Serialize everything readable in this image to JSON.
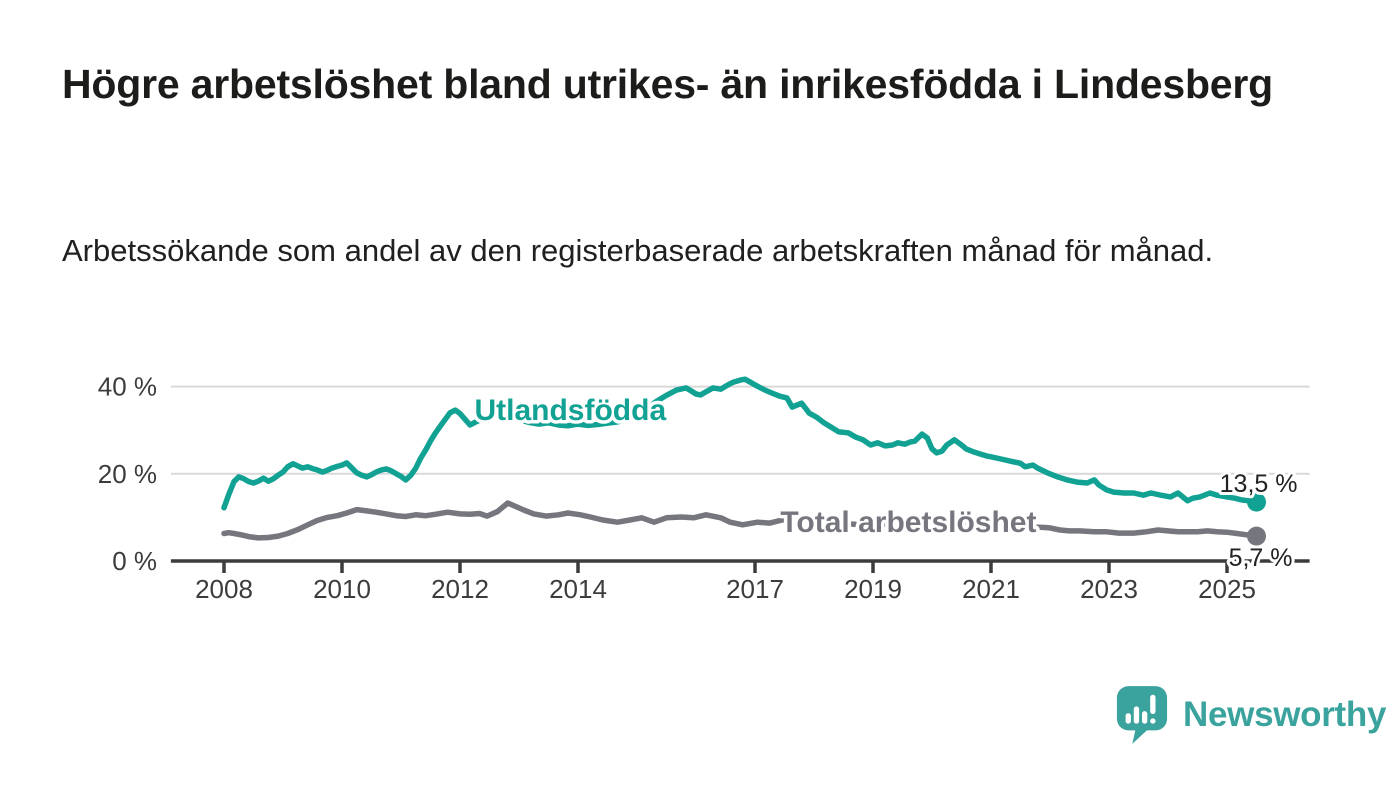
{
  "header": {
    "title": "Högre arbetslöshet bland utrikes- än inrikesfödda i Lindesberg",
    "subtitle": "Arbetssökande som andel av den registerbaserade arbetskraften månad för månad."
  },
  "footer": {
    "brand": "Newsworthy",
    "brand_color": "#3ba39d"
  },
  "chart_data": {
    "type": "line",
    "title": "Högre arbetslöshet bland utrikes- än inrikesfödda i Lindesberg",
    "xlabel": "",
    "ylabel": "",
    "unit": "%",
    "grid": "horizontal",
    "legend_position": "inline-labels",
    "xlim": [
      2007.1,
      2026.4
    ],
    "ylim": [
      0,
      46
    ],
    "x_ticks": [
      {
        "value": 2008,
        "label": "2008"
      },
      {
        "value": 2010,
        "label": "2010"
      },
      {
        "value": 2012,
        "label": "2012"
      },
      {
        "value": 2014,
        "label": "2014"
      },
      {
        "value": 2017,
        "label": "2017"
      },
      {
        "value": 2019,
        "label": "2019"
      },
      {
        "value": 2021,
        "label": "2021"
      },
      {
        "value": 2023,
        "label": "2023"
      },
      {
        "value": 2025,
        "label": "2025"
      }
    ],
    "y_ticks": [
      {
        "value": 0,
        "label": "0 %"
      },
      {
        "value": 20,
        "label": "20 %"
      },
      {
        "value": 40,
        "label": "40 %"
      }
    ],
    "series": [
      {
        "name": "Utlandsfödda",
        "color": "#12a294",
        "end_label": "13,5 %",
        "last_value": 13.5,
        "label_anchor": {
          "x": 2013.87,
          "y": 32.3,
          "align": "middle"
        },
        "end_label_offset": {
          "dx": 41,
          "dy": -10
        },
        "points": [
          [
            2008.0,
            12.2
          ],
          [
            2008.08,
            15.2
          ],
          [
            2008.17,
            18.2
          ],
          [
            2008.25,
            19.3
          ],
          [
            2008.33,
            18.9
          ],
          [
            2008.42,
            18.2
          ],
          [
            2008.5,
            17.9
          ],
          [
            2008.58,
            18.3
          ],
          [
            2008.67,
            19.0
          ],
          [
            2008.75,
            18.3
          ],
          [
            2008.83,
            18.8
          ],
          [
            2008.92,
            19.7
          ],
          [
            2009.0,
            20.4
          ],
          [
            2009.08,
            21.6
          ],
          [
            2009.17,
            22.3
          ],
          [
            2009.25,
            21.8
          ],
          [
            2009.33,
            21.3
          ],
          [
            2009.42,
            21.6
          ],
          [
            2009.5,
            21.2
          ],
          [
            2009.58,
            20.9
          ],
          [
            2009.67,
            20.4
          ],
          [
            2009.75,
            20.8
          ],
          [
            2009.83,
            21.3
          ],
          [
            2009.92,
            21.7
          ],
          [
            2010.0,
            22.0
          ],
          [
            2010.08,
            22.5
          ],
          [
            2010.17,
            21.3
          ],
          [
            2010.25,
            20.2
          ],
          [
            2010.33,
            19.7
          ],
          [
            2010.42,
            19.3
          ],
          [
            2010.5,
            19.8
          ],
          [
            2010.58,
            20.4
          ],
          [
            2010.67,
            20.9
          ],
          [
            2010.75,
            21.1
          ],
          [
            2010.83,
            20.7
          ],
          [
            2010.92,
            20.0
          ],
          [
            2011.0,
            19.4
          ],
          [
            2011.08,
            18.6
          ],
          [
            2011.17,
            19.7
          ],
          [
            2011.25,
            21.3
          ],
          [
            2011.33,
            23.5
          ],
          [
            2011.42,
            25.5
          ],
          [
            2011.5,
            27.5
          ],
          [
            2011.58,
            29.3
          ],
          [
            2011.67,
            31.0
          ],
          [
            2011.75,
            32.5
          ],
          [
            2011.83,
            34.0
          ],
          [
            2011.92,
            34.6
          ],
          [
            2012.0,
            33.8
          ],
          [
            2012.08,
            32.6
          ],
          [
            2012.17,
            31.2
          ],
          [
            2012.25,
            31.8
          ],
          [
            2012.33,
            32.3
          ],
          [
            2012.42,
            32.8
          ],
          [
            2012.5,
            33.0
          ],
          [
            2012.58,
            33.4
          ],
          [
            2012.67,
            33.0
          ],
          [
            2012.75,
            32.6
          ],
          [
            2012.83,
            32.2
          ],
          [
            2012.92,
            32.6
          ],
          [
            2013.0,
            32.4
          ],
          [
            2013.17,
            31.8
          ],
          [
            2013.33,
            31.4
          ],
          [
            2013.5,
            31.7
          ],
          [
            2013.67,
            31.2
          ],
          [
            2013.83,
            31.0
          ],
          [
            2014.0,
            31.4
          ],
          [
            2014.17,
            31.1
          ],
          [
            2014.33,
            31.3
          ],
          [
            2014.5,
            31.6
          ],
          [
            2014.67,
            31.9
          ],
          [
            2014.83,
            32.5
          ],
          [
            2015.0,
            33.6
          ],
          [
            2015.17,
            35.0
          ],
          [
            2015.33,
            36.6
          ],
          [
            2015.5,
            38.0
          ],
          [
            2015.67,
            39.2
          ],
          [
            2015.83,
            39.7
          ],
          [
            2015.92,
            39.0
          ],
          [
            2016.0,
            38.3
          ],
          [
            2016.08,
            38.1
          ],
          [
            2016.17,
            38.8
          ],
          [
            2016.29,
            39.7
          ],
          [
            2016.42,
            39.4
          ],
          [
            2016.54,
            40.4
          ],
          [
            2016.63,
            41.0
          ],
          [
            2016.75,
            41.5
          ],
          [
            2016.83,
            41.7
          ],
          [
            2016.92,
            41.0
          ],
          [
            2017.04,
            40.1
          ],
          [
            2017.17,
            39.2
          ],
          [
            2017.29,
            38.5
          ],
          [
            2017.42,
            37.8
          ],
          [
            2017.54,
            37.4
          ],
          [
            2017.63,
            35.3
          ],
          [
            2017.79,
            36.2
          ],
          [
            2017.92,
            33.9
          ],
          [
            2018.04,
            33.0
          ],
          [
            2018.17,
            31.7
          ],
          [
            2018.29,
            30.7
          ],
          [
            2018.42,
            29.6
          ],
          [
            2018.58,
            29.4
          ],
          [
            2018.71,
            28.4
          ],
          [
            2018.83,
            27.8
          ],
          [
            2018.96,
            26.6
          ],
          [
            2019.08,
            27.1
          ],
          [
            2019.21,
            26.4
          ],
          [
            2019.33,
            26.6
          ],
          [
            2019.42,
            27.1
          ],
          [
            2019.54,
            26.8
          ],
          [
            2019.63,
            27.3
          ],
          [
            2019.71,
            27.5
          ],
          [
            2019.83,
            29.1
          ],
          [
            2019.92,
            28.2
          ],
          [
            2020.0,
            25.7
          ],
          [
            2020.08,
            24.8
          ],
          [
            2020.17,
            25.2
          ],
          [
            2020.25,
            26.6
          ],
          [
            2020.38,
            27.8
          ],
          [
            2020.5,
            26.6
          ],
          [
            2020.58,
            25.7
          ],
          [
            2020.71,
            25.0
          ],
          [
            2020.83,
            24.5
          ],
          [
            2020.92,
            24.1
          ],
          [
            2021.0,
            23.9
          ],
          [
            2021.17,
            23.4
          ],
          [
            2021.33,
            22.9
          ],
          [
            2021.5,
            22.4
          ],
          [
            2021.58,
            21.6
          ],
          [
            2021.71,
            22.0
          ],
          [
            2021.79,
            21.3
          ],
          [
            2021.96,
            20.2
          ],
          [
            2022.13,
            19.3
          ],
          [
            2022.29,
            18.6
          ],
          [
            2022.46,
            18.1
          ],
          [
            2022.63,
            17.9
          ],
          [
            2022.75,
            18.6
          ],
          [
            2022.83,
            17.4
          ],
          [
            2022.96,
            16.3
          ],
          [
            2023.08,
            15.8
          ],
          [
            2023.25,
            15.6
          ],
          [
            2023.42,
            15.6
          ],
          [
            2023.58,
            15.1
          ],
          [
            2023.71,
            15.6
          ],
          [
            2023.88,
            15.1
          ],
          [
            2024.04,
            14.7
          ],
          [
            2024.17,
            15.6
          ],
          [
            2024.33,
            13.8
          ],
          [
            2024.42,
            14.4
          ],
          [
            2024.54,
            14.7
          ],
          [
            2024.71,
            15.6
          ],
          [
            2024.83,
            15.1
          ],
          [
            2025.0,
            14.7
          ],
          [
            2025.13,
            14.4
          ],
          [
            2025.25,
            14.0
          ],
          [
            2025.38,
            13.8
          ],
          [
            2025.5,
            13.5
          ]
        ]
      },
      {
        "name": "Total arbetslöshet",
        "color": "#76767e",
        "end_label": "5,7 %",
        "last_value": 5.7,
        "label_anchor": {
          "x": 2019.6,
          "y": 6.65,
          "align": "middle"
        },
        "end_label_offset": {
          "dx": 36,
          "dy": 30
        },
        "points": [
          [
            2008.0,
            6.3
          ],
          [
            2008.08,
            6.5
          ],
          [
            2008.17,
            6.3
          ],
          [
            2008.29,
            6.0
          ],
          [
            2008.42,
            5.6
          ],
          [
            2008.58,
            5.3
          ],
          [
            2008.75,
            5.4
          ],
          [
            2008.92,
            5.7
          ],
          [
            2009.08,
            6.3
          ],
          [
            2009.25,
            7.2
          ],
          [
            2009.42,
            8.3
          ],
          [
            2009.58,
            9.3
          ],
          [
            2009.75,
            10.0
          ],
          [
            2009.92,
            10.4
          ],
          [
            2010.08,
            11.0
          ],
          [
            2010.25,
            11.8
          ],
          [
            2010.42,
            11.5
          ],
          [
            2010.58,
            11.2
          ],
          [
            2010.75,
            10.8
          ],
          [
            2010.92,
            10.4
          ],
          [
            2011.08,
            10.2
          ],
          [
            2011.25,
            10.6
          ],
          [
            2011.42,
            10.4
          ],
          [
            2011.58,
            10.7
          ],
          [
            2011.79,
            11.2
          ],
          [
            2012.0,
            10.8
          ],
          [
            2012.17,
            10.7
          ],
          [
            2012.33,
            10.9
          ],
          [
            2012.46,
            10.3
          ],
          [
            2012.63,
            11.3
          ],
          [
            2012.81,
            13.3
          ],
          [
            2012.96,
            12.4
          ],
          [
            2013.08,
            11.7
          ],
          [
            2013.25,
            10.8
          ],
          [
            2013.46,
            10.3
          ],
          [
            2013.67,
            10.6
          ],
          [
            2013.83,
            11.0
          ],
          [
            2014.04,
            10.6
          ],
          [
            2014.21,
            10.1
          ],
          [
            2014.42,
            9.4
          ],
          [
            2014.67,
            8.9
          ],
          [
            2014.88,
            9.4
          ],
          [
            2015.08,
            9.9
          ],
          [
            2015.29,
            8.9
          ],
          [
            2015.5,
            9.9
          ],
          [
            2015.75,
            10.1
          ],
          [
            2015.96,
            9.9
          ],
          [
            2016.17,
            10.6
          ],
          [
            2016.42,
            9.9
          ],
          [
            2016.58,
            8.9
          ],
          [
            2016.79,
            8.3
          ],
          [
            2017.04,
            8.9
          ],
          [
            2017.25,
            8.7
          ],
          [
            2017.46,
            9.4
          ],
          [
            2017.71,
            9.9
          ],
          [
            2017.92,
            9.6
          ],
          [
            2018.17,
            9.1
          ],
          [
            2018.42,
            8.7
          ],
          [
            2018.71,
            8.4
          ],
          [
            2019.0,
            8.2
          ],
          [
            2019.29,
            8.5
          ],
          [
            2019.58,
            8.3
          ],
          [
            2019.88,
            8.7
          ],
          [
            2020.17,
            9.3
          ],
          [
            2020.46,
            9.1
          ],
          [
            2020.75,
            8.8
          ],
          [
            2021.04,
            8.4
          ],
          [
            2021.33,
            8.0
          ],
          [
            2021.63,
            7.8
          ],
          [
            2021.88,
            7.7
          ],
          [
            2022.0,
            7.6
          ],
          [
            2022.17,
            7.1
          ],
          [
            2022.33,
            6.9
          ],
          [
            2022.5,
            6.9
          ],
          [
            2022.75,
            6.7
          ],
          [
            2022.96,
            6.7
          ],
          [
            2023.17,
            6.4
          ],
          [
            2023.42,
            6.4
          ],
          [
            2023.63,
            6.7
          ],
          [
            2023.83,
            7.1
          ],
          [
            2024.0,
            6.9
          ],
          [
            2024.17,
            6.7
          ],
          [
            2024.33,
            6.7
          ],
          [
            2024.5,
            6.7
          ],
          [
            2024.67,
            6.9
          ],
          [
            2024.83,
            6.7
          ],
          [
            2025.0,
            6.6
          ],
          [
            2025.17,
            6.3
          ],
          [
            2025.33,
            6.0
          ],
          [
            2025.5,
            5.7
          ]
        ]
      }
    ],
    "style": {
      "grid_color": "#d9d9d9",
      "axis_color": "#3c3c3c",
      "tick_label_color": "#3c3c3c",
      "end_label_color": "#222222"
    }
  }
}
